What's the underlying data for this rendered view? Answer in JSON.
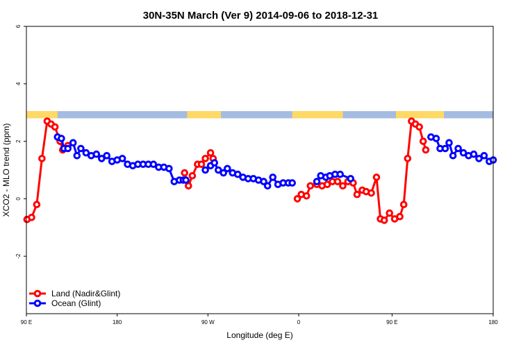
{
  "chart_data": {
    "type": "line",
    "title": "30N-35N March (Ver 9)   2014-09-06 to 2018-12-31",
    "xlabel": "Longitude (deg E)",
    "ylabel": "XCO2 - MLO trend (ppm)",
    "xlim": [
      90,
      450
    ],
    "ylim": [
      -4,
      6
    ],
    "x_ticks": [
      {
        "value": 90,
        "label": "90 E"
      },
      {
        "value": 160,
        "label": "180"
      },
      {
        "value": 230,
        "label": "90 W"
      },
      {
        "value": 300,
        "label": "0"
      },
      {
        "value": 372,
        "label": "90 E"
      },
      {
        "value": 450,
        "label": "180"
      }
    ],
    "y_ticks": [
      {
        "value": -2,
        "label": "-2"
      },
      {
        "value": 0,
        "label": "0"
      },
      {
        "value": 2,
        "label": "2"
      },
      {
        "value": 4,
        "label": "4"
      },
      {
        "value": 6,
        "label": "6"
      }
    ],
    "grid": false,
    "legend_position": "bottom-left",
    "land_mask": {
      "y_range": [
        2.8,
        3.05
      ],
      "land_color": "#FFD966",
      "ocean_color": "#A3BCDF",
      "land_segments": [
        [
          90,
          114
        ],
        [
          214,
          240
        ],
        [
          295,
          334
        ],
        [
          375,
          412
        ]
      ]
    },
    "series": [
      {
        "name": "Land (Nadir&Glint)",
        "color": "#FF0000",
        "segments": [
          {
            "x": [
              90.5,
              94,
              98,
              102,
              106,
              109,
              112,
              116,
              118,
              122
            ],
            "y": [
              -0.72,
              -0.65,
              -0.2,
              1.4,
              2.7,
              2.6,
              2.5,
              2.0,
              1.7,
              1.85
            ]
          },
          {
            "x": [
              212,
              215,
              218,
              222,
              225,
              228,
              232,
              234
            ],
            "y": [
              0.9,
              0.45,
              0.8,
              1.2,
              1.2,
              1.4,
              1.6,
              1.4
            ]
          },
          {
            "x": [
              299,
              302,
              306,
              309,
              314,
              318,
              322,
              326,
              330,
              334,
              338,
              342,
              345,
              349,
              352,
              356,
              360,
              363,
              366,
              370,
              374,
              378,
              381,
              384,
              387,
              390,
              393,
              396,
              398
            ],
            "y": [
              0.0,
              0.15,
              0.1,
              0.45,
              0.5,
              0.45,
              0.5,
              0.6,
              0.6,
              0.45,
              0.6,
              0.55,
              0.15,
              0.3,
              0.25,
              0.2,
              0.75,
              -0.7,
              -0.75,
              -0.5,
              -0.7,
              -0.62,
              -0.2,
              1.4,
              2.7,
              2.6,
              2.5,
              2.0,
              1.7
            ]
          }
        ]
      },
      {
        "name": "Ocean (Glint)",
        "color": "#0000FF",
        "segments": [
          {
            "x": [
              114,
              117,
              119,
              122,
              126,
              129,
              132,
              136,
              140,
              144,
              148,
              152,
              156,
              160,
              164,
              168,
              172,
              176,
              180,
              184,
              188,
              192,
              196,
              200,
              204,
              208,
              211,
              213
            ],
            "y": [
              2.15,
              2.1,
              1.75,
              1.75,
              1.95,
              1.5,
              1.75,
              1.6,
              1.5,
              1.55,
              1.4,
              1.5,
              1.3,
              1.35,
              1.4,
              1.2,
              1.15,
              1.2,
              1.2,
              1.2,
              1.2,
              1.1,
              1.1,
              1.05,
              0.6,
              0.65,
              0.65,
              0.65
            ]
          },
          {
            "x": [
              228,
              232,
              235,
              238,
              242,
              245,
              249,
              253,
              257,
              261,
              265,
              269,
              273,
              276,
              280,
              284,
              288,
              292,
              295
            ],
            "y": [
              1.0,
              1.15,
              1.25,
              1.0,
              0.9,
              1.05,
              0.9,
              0.85,
              0.75,
              0.7,
              0.7,
              0.65,
              0.6,
              0.45,
              0.75,
              0.5,
              0.55,
              0.55,
              0.55
            ]
          },
          {
            "x": [
              314,
              317,
              321,
              324,
              328,
              332,
              340
            ],
            "y": [
              0.6,
              0.8,
              0.75,
              0.8,
              0.85,
              0.85,
              0.7
            ]
          },
          {
            "x": [
              402,
              406,
              409,
              413,
              416,
              419,
              423,
              427,
              431,
              435,
              439,
              443,
              447,
              450
            ],
            "y": [
              2.15,
              2.1,
              1.75,
              1.75,
              1.95,
              1.5,
              1.75,
              1.6,
              1.5,
              1.55,
              1.4,
              1.5,
              1.3,
              1.35
            ]
          }
        ]
      }
    ]
  }
}
